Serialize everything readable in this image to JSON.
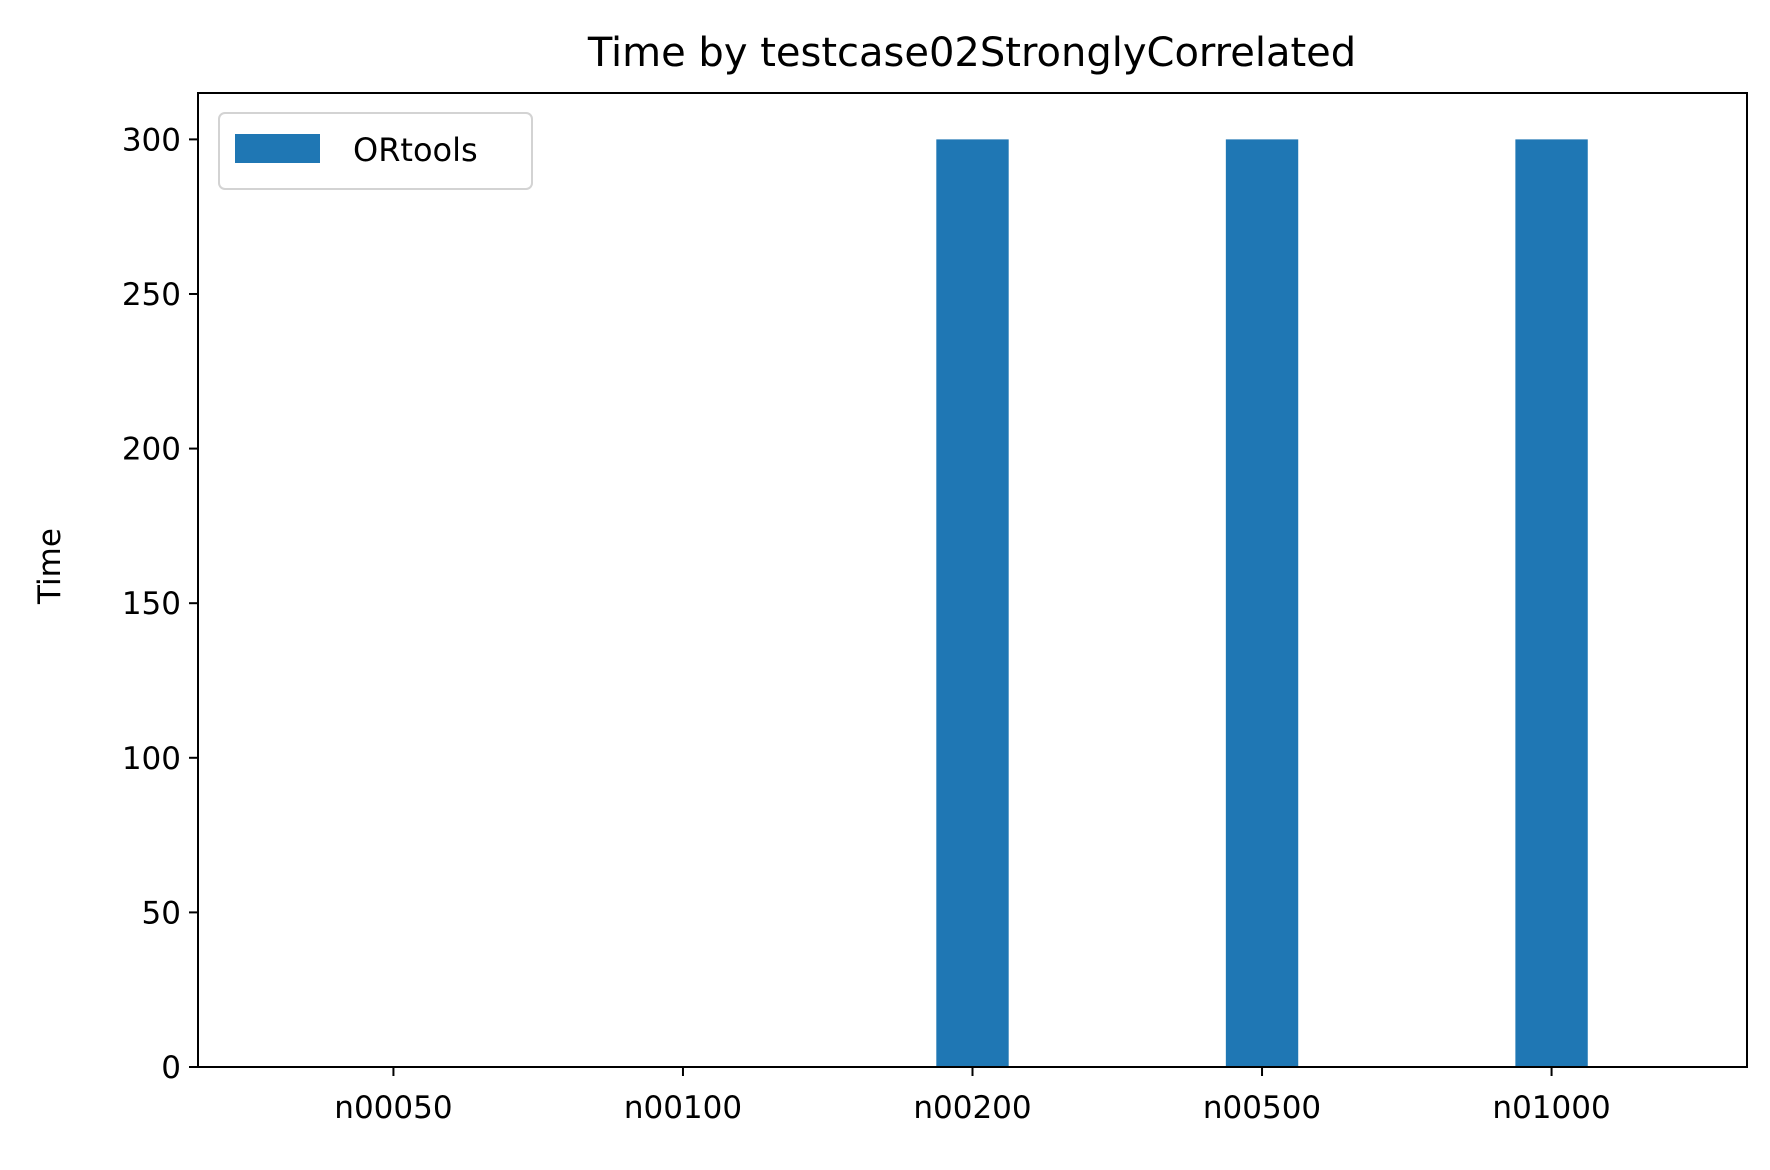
{
  "chart_data": {
    "type": "bar",
    "title": "Time by testcase02StronglyCorrelated",
    "xlabel": "",
    "ylabel": "Time",
    "categories": [
      "n00050",
      "n00100",
      "n00200",
      "n00500",
      "n01000"
    ],
    "series": [
      {
        "name": "ORtools",
        "values": [
          0,
          0,
          300,
          300,
          300
        ],
        "color": "#1f77b4"
      }
    ],
    "ylim": [
      0,
      315
    ],
    "yticks": [
      0,
      50,
      100,
      150,
      200,
      250,
      300
    ],
    "grid": false,
    "legend_position": "top-left"
  }
}
